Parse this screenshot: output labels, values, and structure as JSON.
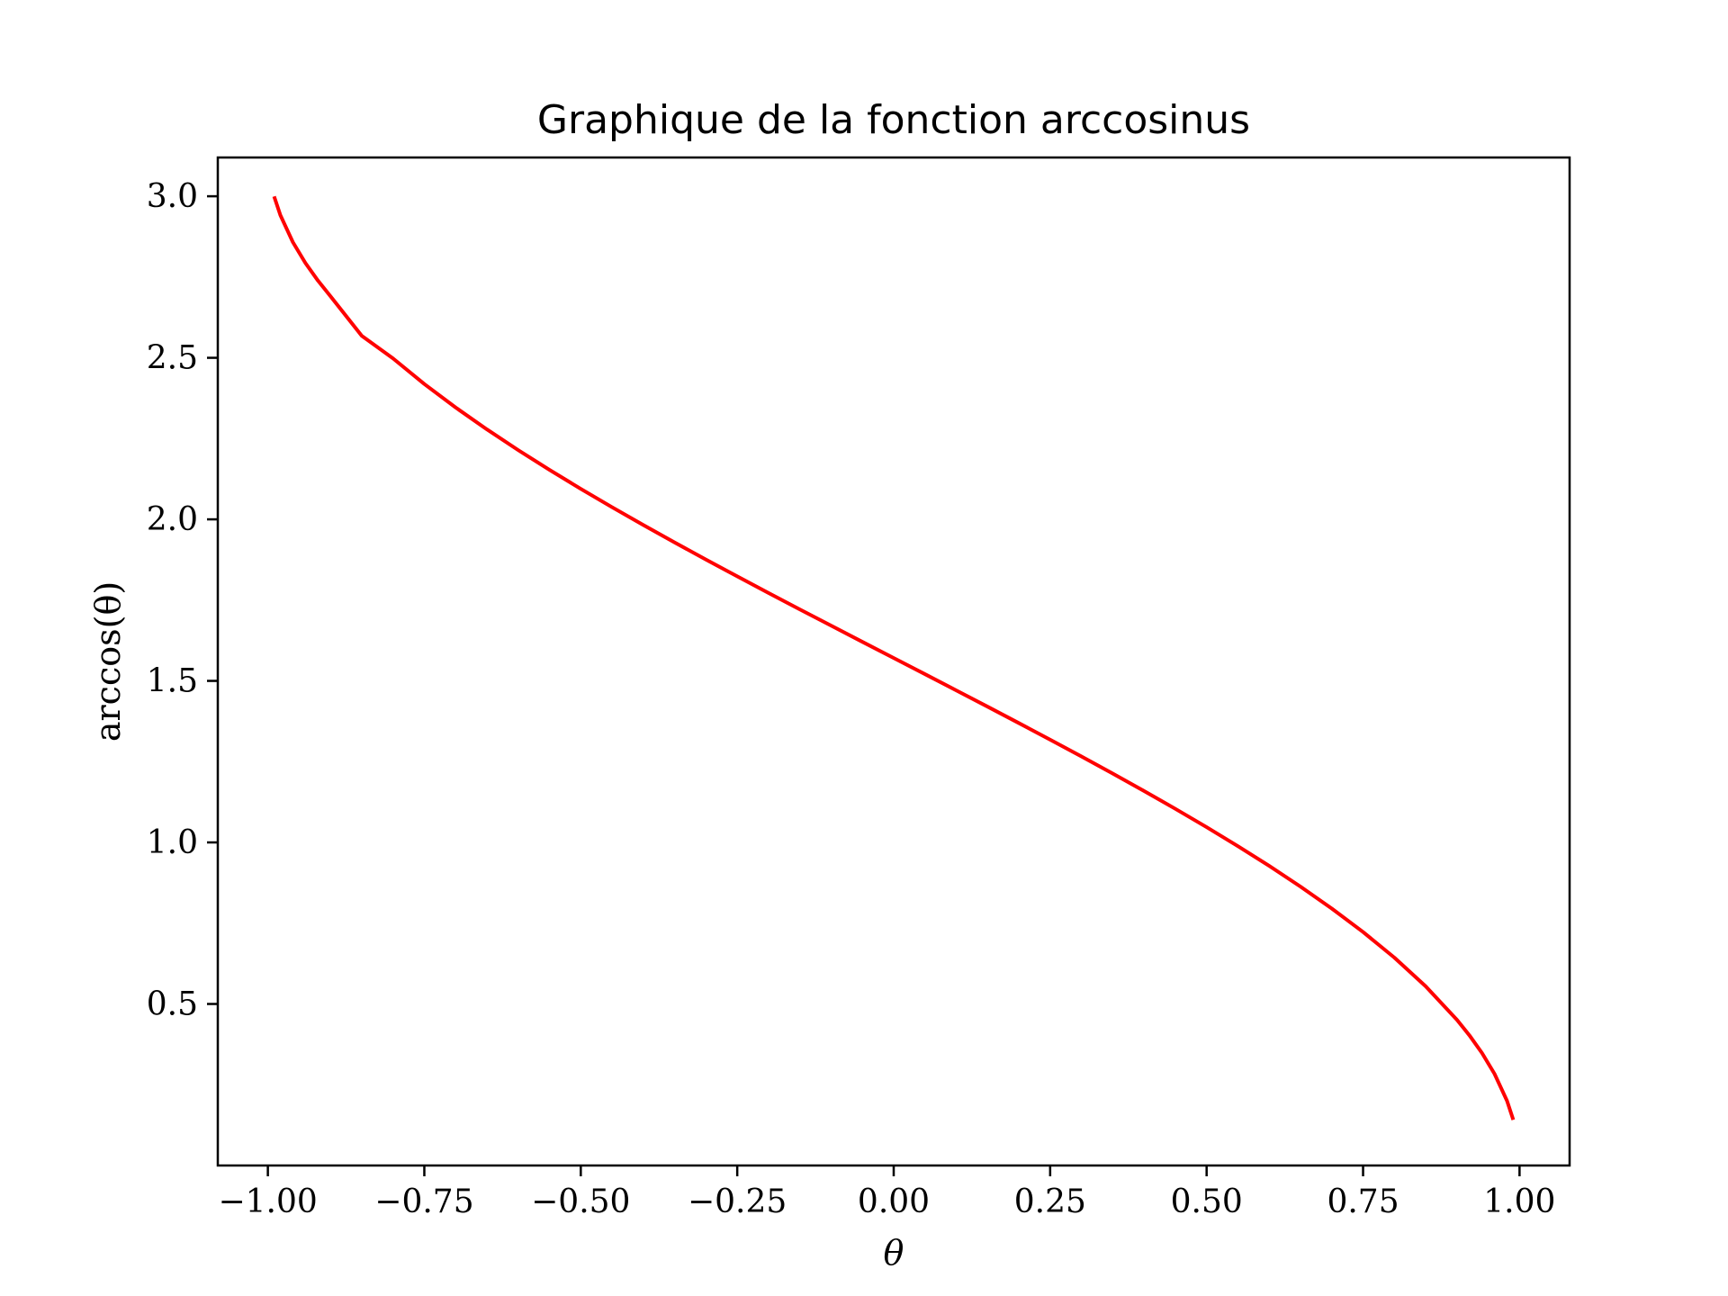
{
  "chart_data": {
    "type": "line",
    "title": "Graphique de la fonction arccosinus",
    "xlabel": "θ",
    "ylabel": "arccos(θ)",
    "xlim": [
      -1.08,
      1.08
    ],
    "ylim": [
      0.0,
      3.12
    ],
    "xticks": [
      -1.0,
      -0.75,
      -0.5,
      -0.25,
      0.0,
      0.25,
      0.5,
      0.75,
      1.0
    ],
    "xtick_labels": [
      "−1.00",
      "−0.75",
      "−0.50",
      "−0.25",
      "0.00",
      "0.25",
      "0.50",
      "0.75",
      "1.00"
    ],
    "yticks": [
      0.5,
      1.0,
      1.5,
      2.0,
      2.5,
      3.0
    ],
    "ytick_labels": [
      "0.5",
      "1.0",
      "1.5",
      "2.0",
      "2.5",
      "3.0"
    ],
    "grid": false,
    "series": [
      {
        "color": "#ff0000",
        "x": [
          -0.99,
          -0.98,
          -0.96,
          -0.94,
          -0.92,
          -0.9,
          -0.85,
          -0.8,
          -0.75,
          -0.7,
          -0.65,
          -0.6,
          -0.55,
          -0.5,
          -0.45,
          -0.4,
          -0.35,
          -0.3,
          -0.25,
          -0.2,
          -0.15,
          -0.1,
          -0.05,
          0.0,
          0.05,
          0.1,
          0.15,
          0.2,
          0.25,
          0.3,
          0.35,
          0.4,
          0.45,
          0.5,
          0.55,
          0.6,
          0.65,
          0.7,
          0.75,
          0.8,
          0.85,
          0.9,
          0.92,
          0.94,
          0.96,
          0.98,
          0.99
        ],
        "y": [
          2.9996,
          2.9413,
          2.8578,
          2.7934,
          2.7389,
          2.6906,
          2.5681,
          2.4981,
          2.4189,
          2.3462,
          2.2785,
          2.2143,
          2.1531,
          2.0944,
          2.0376,
          1.9823,
          1.9284,
          1.8755,
          1.8235,
          1.7722,
          1.7213,
          1.671,
          1.6208,
          1.5708,
          1.5208,
          1.4706,
          1.4202,
          1.3694,
          1.3181,
          1.2661,
          1.2132,
          1.1593,
          1.104,
          1.0472,
          0.9884,
          0.9273,
          0.8632,
          0.7954,
          0.7227,
          0.6435,
          0.5548,
          0.451,
          0.4027,
          0.3482,
          0.2838,
          0.2003,
          0.1415
        ]
      }
    ]
  }
}
